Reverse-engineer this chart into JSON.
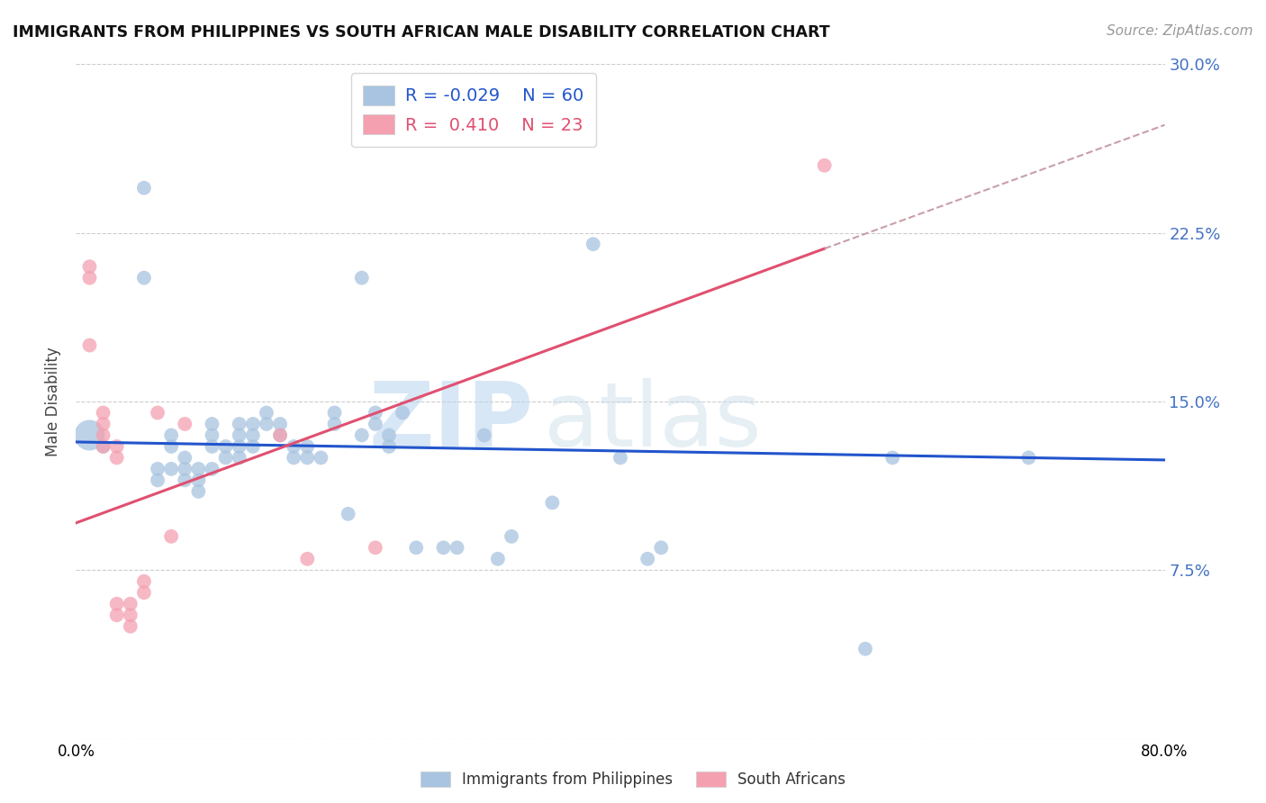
{
  "title": "IMMIGRANTS FROM PHILIPPINES VS SOUTH AFRICAN MALE DISABILITY CORRELATION CHART",
  "source": "Source: ZipAtlas.com",
  "ylabel": "Male Disability",
  "yticks": [
    0.0,
    0.075,
    0.15,
    0.225,
    0.3
  ],
  "ytick_labels": [
    "",
    "7.5%",
    "15.0%",
    "22.5%",
    "30.0%"
  ],
  "xlim": [
    0.0,
    0.8
  ],
  "ylim": [
    0.0,
    0.3
  ],
  "legend_blue_R": "-0.029",
  "legend_blue_N": "60",
  "legend_pink_R": "0.410",
  "legend_pink_N": "23",
  "blue_color": "#a8c4e0",
  "pink_color": "#f4a0b0",
  "blue_line_color": "#2255cc",
  "pink_line_color": "#e05070",
  "dashed_line_color": "#c8a0a8",
  "watermark_zip": "ZIP",
  "watermark_atlas": "atlas",
  "blue_scatter_x": [
    0.02,
    0.05,
    0.05,
    0.06,
    0.06,
    0.07,
    0.07,
    0.07,
    0.08,
    0.08,
    0.08,
    0.09,
    0.09,
    0.09,
    0.1,
    0.1,
    0.1,
    0.1,
    0.11,
    0.11,
    0.12,
    0.12,
    0.12,
    0.12,
    0.13,
    0.13,
    0.13,
    0.14,
    0.14,
    0.15,
    0.15,
    0.16,
    0.16,
    0.17,
    0.17,
    0.18,
    0.19,
    0.19,
    0.2,
    0.21,
    0.21,
    0.22,
    0.22,
    0.23,
    0.23,
    0.24,
    0.25,
    0.27,
    0.28,
    0.3,
    0.31,
    0.32,
    0.35,
    0.38,
    0.4,
    0.42,
    0.43,
    0.58,
    0.6,
    0.7
  ],
  "blue_scatter_y": [
    0.13,
    0.245,
    0.205,
    0.12,
    0.115,
    0.135,
    0.13,
    0.12,
    0.125,
    0.12,
    0.115,
    0.12,
    0.115,
    0.11,
    0.14,
    0.135,
    0.13,
    0.12,
    0.13,
    0.125,
    0.14,
    0.135,
    0.13,
    0.125,
    0.14,
    0.135,
    0.13,
    0.145,
    0.14,
    0.14,
    0.135,
    0.13,
    0.125,
    0.13,
    0.125,
    0.125,
    0.145,
    0.14,
    0.1,
    0.205,
    0.135,
    0.145,
    0.14,
    0.135,
    0.13,
    0.145,
    0.085,
    0.085,
    0.085,
    0.135,
    0.08,
    0.09,
    0.105,
    0.22,
    0.125,
    0.08,
    0.085,
    0.04,
    0.125,
    0.125
  ],
  "blue_large_x": [
    0.01
  ],
  "blue_large_y": [
    0.135
  ],
  "pink_scatter_x": [
    0.01,
    0.01,
    0.01,
    0.02,
    0.02,
    0.02,
    0.02,
    0.03,
    0.03,
    0.03,
    0.03,
    0.04,
    0.04,
    0.04,
    0.05,
    0.05,
    0.06,
    0.07,
    0.08,
    0.15,
    0.17,
    0.22,
    0.55
  ],
  "pink_scatter_y": [
    0.21,
    0.205,
    0.175,
    0.145,
    0.14,
    0.135,
    0.13,
    0.13,
    0.125,
    0.06,
    0.055,
    0.06,
    0.055,
    0.05,
    0.07,
    0.065,
    0.145,
    0.09,
    0.14,
    0.135,
    0.08,
    0.085,
    0.255
  ],
  "blue_trend_x": [
    0.0,
    0.8
  ],
  "blue_trend_y": [
    0.132,
    0.124
  ],
  "pink_trend_x": [
    0.0,
    0.55
  ],
  "pink_trend_y": [
    0.096,
    0.218
  ],
  "dashed_trend_x": [
    0.55,
    0.8
  ],
  "dashed_trend_y": [
    0.218,
    0.273
  ]
}
